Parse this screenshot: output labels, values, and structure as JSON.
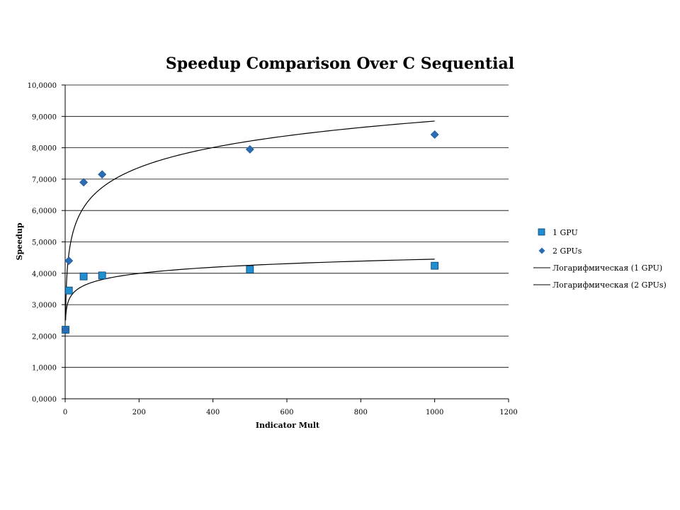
{
  "chart_data": {
    "type": "scatter",
    "title": "Speedup Comparison Over C Sequential",
    "xlabel": "Indicator Mult",
    "ylabel": "Speedup",
    "xlim": [
      0,
      1200
    ],
    "ylim": [
      0,
      10
    ],
    "x_ticks": [
      "0",
      "200",
      "400",
      "600",
      "800",
      "1000",
      "1200"
    ],
    "x_tick_values": [
      0,
      200,
      400,
      600,
      800,
      1000,
      1200
    ],
    "y_ticks": [
      "0,0000",
      "1,0000",
      "2,0000",
      "3,0000",
      "4,0000",
      "5,0000",
      "6,0000",
      "7,0000",
      "8,0000",
      "9,0000",
      "10,0000"
    ],
    "y_tick_values": [
      0,
      1,
      2,
      3,
      4,
      5,
      6,
      7,
      8,
      9,
      10
    ],
    "grid": "horizontal",
    "legend_position": "right",
    "series": [
      {
        "name": "1 GPU",
        "marker": "square",
        "color": "#1f8fcf",
        "x": [
          1,
          10,
          50,
          100,
          500,
          1000
        ],
        "y": [
          2.2,
          3.45,
          3.9,
          3.93,
          4.12,
          4.24
        ]
      },
      {
        "name": "2 GPUs",
        "marker": "diamond",
        "color": "#2a6db5",
        "x": [
          1,
          10,
          50,
          100,
          500,
          1000
        ],
        "y": [
          2.2,
          4.4,
          6.9,
          7.15,
          7.95,
          8.42
        ]
      }
    ],
    "trendlines": [
      {
        "name": "Логарифмическая (1 GPU)",
        "type": "logarithmic",
        "x_range": [
          1,
          1000
        ],
        "y_at_x1": 2.5,
        "y_at_x1000": 4.45
      },
      {
        "name": "Логарифмическая (2 GPUs)",
        "type": "logarithmic",
        "x_range": [
          1,
          1000
        ],
        "y_at_x1": 2.5,
        "y_at_x1000": 8.85
      }
    ]
  }
}
